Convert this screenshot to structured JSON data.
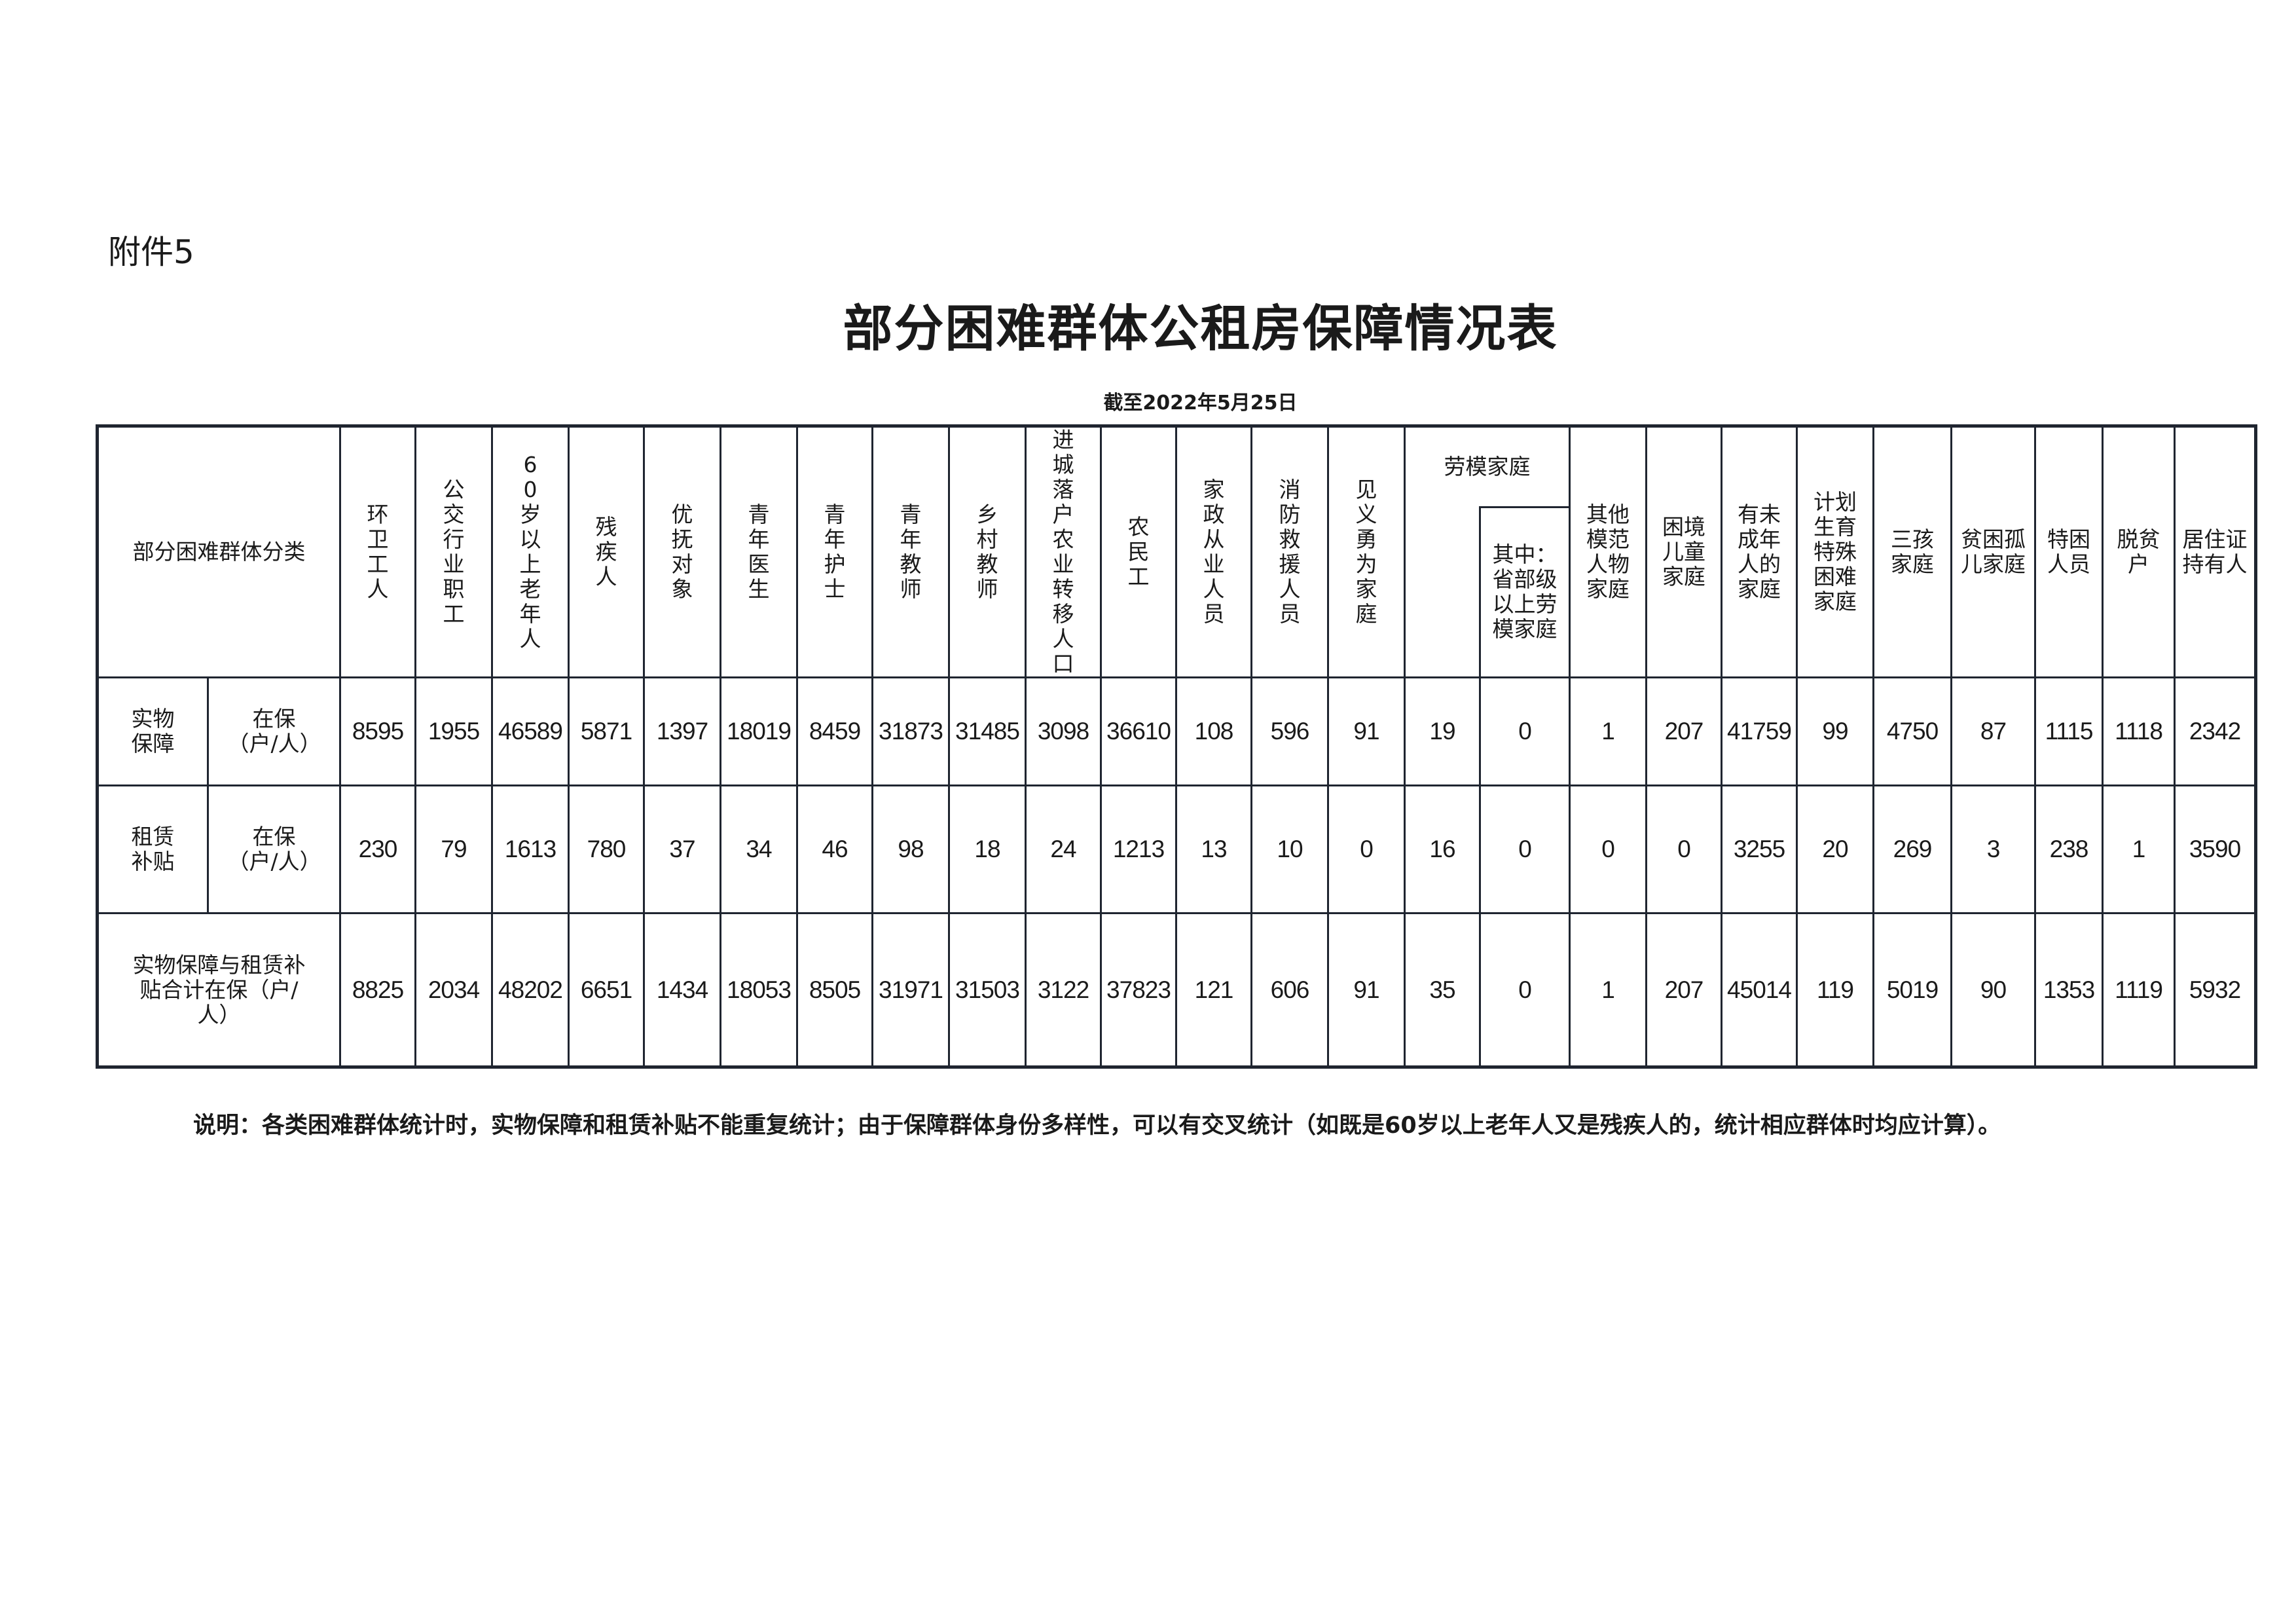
{
  "attachment_label": "附件5",
  "title": "部分困难群体公租房保障情况表",
  "date": "截至2022年5月25日",
  "table": {
    "corner_header": "部分困难群体分类",
    "columns_before_group": [
      "环卫工人",
      "公交行业职工",
      "60岁以上老年人",
      "残疾人",
      "优抚对象",
      "青年医生",
      "青年护士",
      "青年教师",
      "乡村教师",
      "进城落户农业转移人口",
      "农民工",
      "家政从业人员",
      "消防救援人员",
      "见义勇为家庭"
    ],
    "group_header": "劳模家庭",
    "group_sub_header": "其中：省部级以上劳模家庭",
    "columns_after_group": [
      "其他模范人物家庭",
      "困境儿童家庭",
      "有未成年人的家庭",
      "计划生育特殊困难家庭",
      "三孩家庭",
      "贫困孤儿家庭",
      "特困人员",
      "脱贫户",
      "居住证持有人"
    ],
    "rows": [
      {
        "category": "实物保障",
        "unit": "在保（户/人）",
        "values": [
          "8595",
          "1955",
          "46589",
          "5871",
          "1397",
          "18019",
          "8459",
          "31873",
          "31485",
          "3098",
          "36610",
          "108",
          "596",
          "91",
          "19",
          "0",
          "1",
          "207",
          "41759",
          "99",
          "4750",
          "87",
          "1115",
          "1118",
          "2342"
        ]
      },
      {
        "category": "租赁补贴",
        "unit": "在保（户/人）",
        "values": [
          "230",
          "79",
          "1613",
          "780",
          "37",
          "34",
          "46",
          "98",
          "18",
          "24",
          "1213",
          "13",
          "10",
          "0",
          "16",
          "0",
          "0",
          "0",
          "3255",
          "20",
          "269",
          "3",
          "238",
          "1",
          "3590"
        ]
      },
      {
        "category": "实物保障与租赁补贴合计在保（户/人）",
        "values": [
          "8825",
          "2034",
          "48202",
          "6651",
          "1434",
          "18053",
          "8505",
          "31971",
          "31503",
          "3122",
          "37823",
          "121",
          "606",
          "91",
          "35",
          "0",
          "1",
          "207",
          "45014",
          "119",
          "5019",
          "90",
          "1353",
          "1119",
          "5932"
        ]
      }
    ]
  },
  "note": "说明：各类困难群体统计时，实物保障和租赁补贴不能重复统计；由于保障群体身份多样性，可以有交叉统计（如既是60岁以上老年人又是残疾人的，统计相应群体时均应计算）。"
}
